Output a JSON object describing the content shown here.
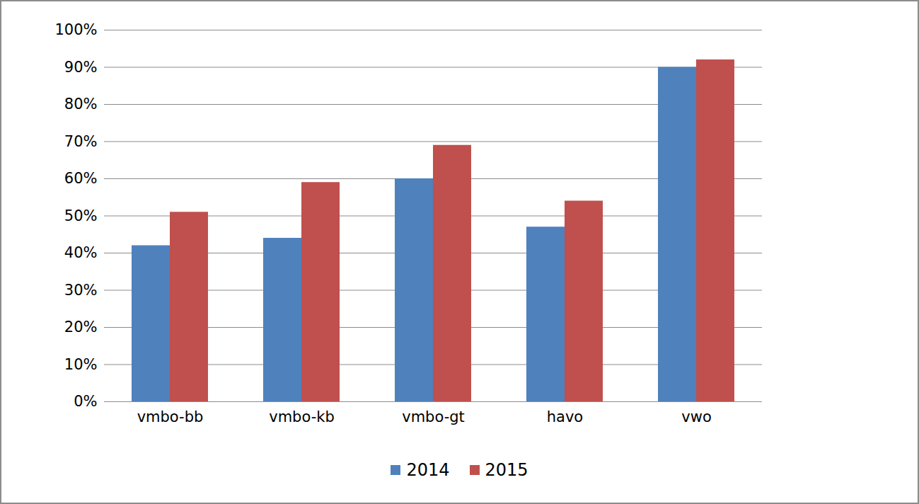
{
  "chart_data": {
    "type": "bar",
    "categories": [
      "vmbo-bb",
      "vmbo-kb",
      "vmbo-gt",
      "havo",
      "vwo"
    ],
    "series": [
      {
        "name": "2014",
        "color": "#4f81bd",
        "values": [
          42,
          44,
          60,
          47,
          90
        ]
      },
      {
        "name": "2015",
        "color": "#c0504d",
        "values": [
          51,
          59,
          69,
          54,
          92
        ]
      }
    ],
    "ylim": [
      0,
      100
    ],
    "yticks": [
      {
        "value": 0,
        "label": "0%"
      },
      {
        "value": 10,
        "label": "10%"
      },
      {
        "value": 20,
        "label": "20%"
      },
      {
        "value": 30,
        "label": "30%"
      },
      {
        "value": 40,
        "label": "40%"
      },
      {
        "value": 50,
        "label": "50%"
      },
      {
        "value": 60,
        "label": "60%"
      },
      {
        "value": 70,
        "label": "70%"
      },
      {
        "value": 80,
        "label": "80%"
      },
      {
        "value": 90,
        "label": "90%"
      },
      {
        "value": 100,
        "label": "100%"
      }
    ],
    "grid": true,
    "legend": "bottom"
  }
}
